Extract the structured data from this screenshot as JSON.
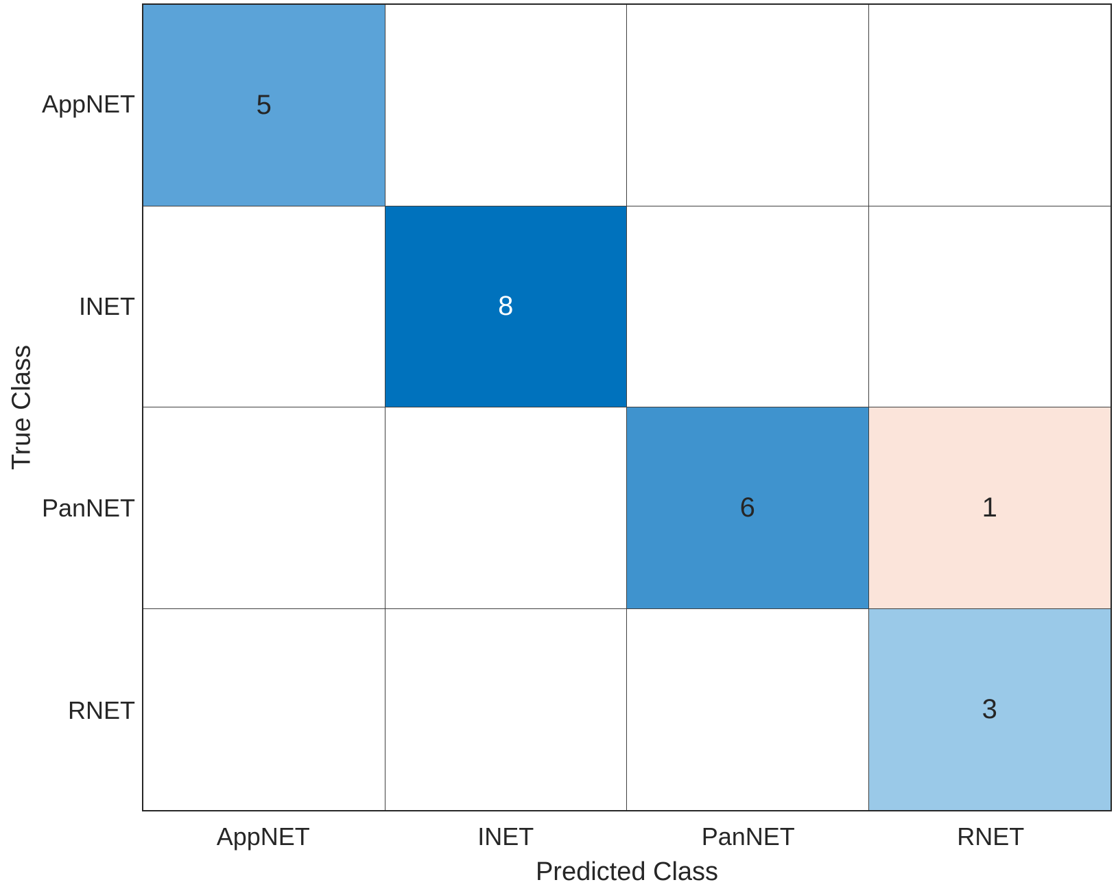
{
  "chart_data": {
    "type": "heatmap",
    "subtype": "confusion_matrix",
    "title": "",
    "xlabel": "Predicted Class",
    "ylabel": "True Class",
    "x_categories": [
      "AppNET",
      "INET",
      "PanNET",
      "RNET"
    ],
    "y_categories": [
      "AppNET",
      "INET",
      "PanNET",
      "RNET"
    ],
    "matrix": [
      [
        5,
        null,
        null,
        null
      ],
      [
        null,
        8,
        null,
        null
      ],
      [
        null,
        null,
        6,
        1
      ],
      [
        null,
        null,
        null,
        3
      ]
    ],
    "cell_colors": [
      [
        "#5ba3d8",
        "#ffffff",
        "#ffffff",
        "#ffffff"
      ],
      [
        "#ffffff",
        "#0072bd",
        "#ffffff",
        "#ffffff"
      ],
      [
        "#ffffff",
        "#ffffff",
        "#3f93ce",
        "#fbe4da"
      ],
      [
        "#ffffff",
        "#ffffff",
        "#ffffff",
        "#9ac9e8"
      ]
    ],
    "cell_text_colors": [
      [
        "#262626",
        null,
        null,
        null
      ],
      [
        null,
        "#ffffff",
        null,
        null
      ],
      [
        null,
        null,
        "#262626",
        "#262626"
      ],
      [
        null,
        null,
        null,
        "#262626"
      ]
    ],
    "colors": {
      "diagonal_max_blue": "#0072bd",
      "grid_line": "#3f3f3f",
      "axes_border": "#262626",
      "label_text": "#262626",
      "background": "#ffffff"
    },
    "layout": {
      "grid": true,
      "legend": false,
      "rows": 4,
      "cols": 4
    }
  }
}
